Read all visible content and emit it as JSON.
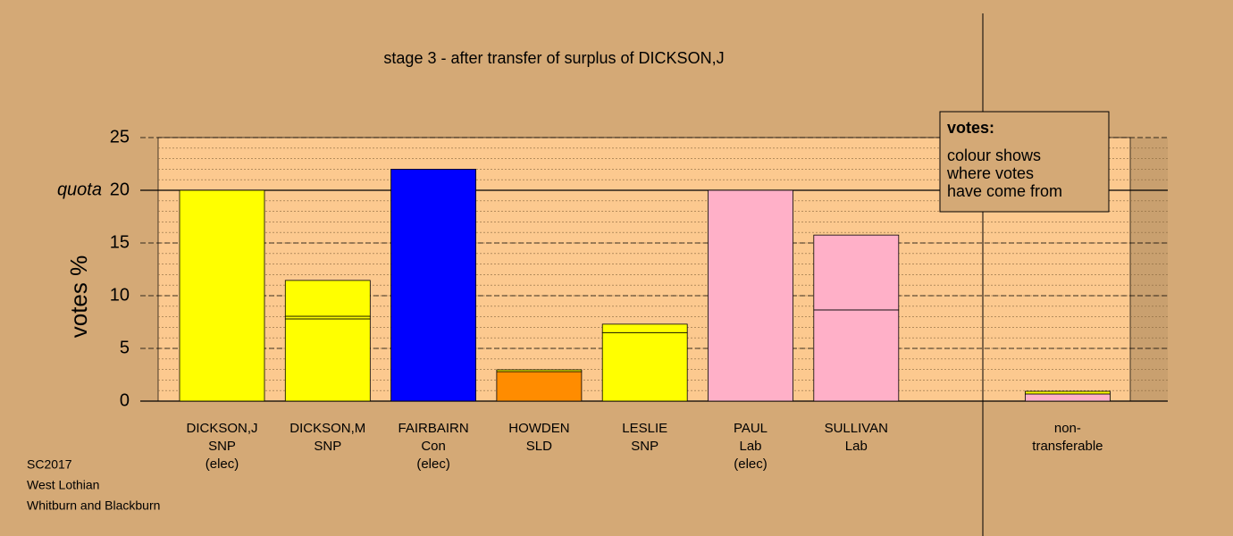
{
  "chart_data": {
    "type": "stacked-bar",
    "title": "stage 3 - after transfer of surplus of DICKSON,J",
    "y_label": "votes %",
    "quota": 20,
    "quota_label": "quota",
    "categories": [
      [
        "DICKSON,J",
        "SNP",
        "(elec)"
      ],
      [
        "DICKSON,M",
        "SNP"
      ],
      [
        "FAIRBAIRN",
        "Con",
        "(elec)"
      ],
      [
        "HOWDEN",
        "SLD"
      ],
      [
        "LESLIE",
        "SNP"
      ],
      [
        "PAUL",
        "Lab",
        "(elec)"
      ],
      [
        "SULLIVAN",
        "Lab"
      ],
      null,
      [
        "non-",
        "transferable"
      ]
    ],
    "series": [
      {
        "values": [
          20,
          7.8,
          22,
          2.8,
          6.5,
          20,
          8.65,
          null,
          0.68
        ],
        "colors": [
          "#ffff00",
          "#ffff00",
          "#0000ff",
          "#ff8c00",
          "#ffff00",
          "#ffb0c8",
          "#ffb0c8",
          null,
          "#ffb0c8"
        ]
      },
      {
        "values": [
          null,
          0.25,
          null,
          0.17,
          0.8,
          null,
          7.1,
          null,
          0.25
        ],
        "colors": [
          null,
          "#ffff00",
          null,
          "#ffff00",
          "#ffff00",
          null,
          "#ffb0c8",
          null,
          "#ffff00"
        ]
      },
      {
        "values": [
          null,
          3.4,
          null,
          null,
          null,
          null,
          null,
          null,
          null
        ],
        "colors": [
          null,
          "#ffff00",
          null,
          null,
          null,
          null,
          null,
          null,
          null
        ]
      }
    ],
    "ylim": [
      0,
      25
    ],
    "yticks": [
      0,
      5,
      10,
      15,
      20,
      25
    ],
    "minor_grid_step": 1,
    "grid": true,
    "legend": {
      "title": "votes:",
      "lines": [
        "colour shows",
        "where votes",
        "have come from"
      ]
    },
    "footer": [
      "SC2017",
      "West Lothian",
      "Whitburn and Blackburn"
    ]
  }
}
